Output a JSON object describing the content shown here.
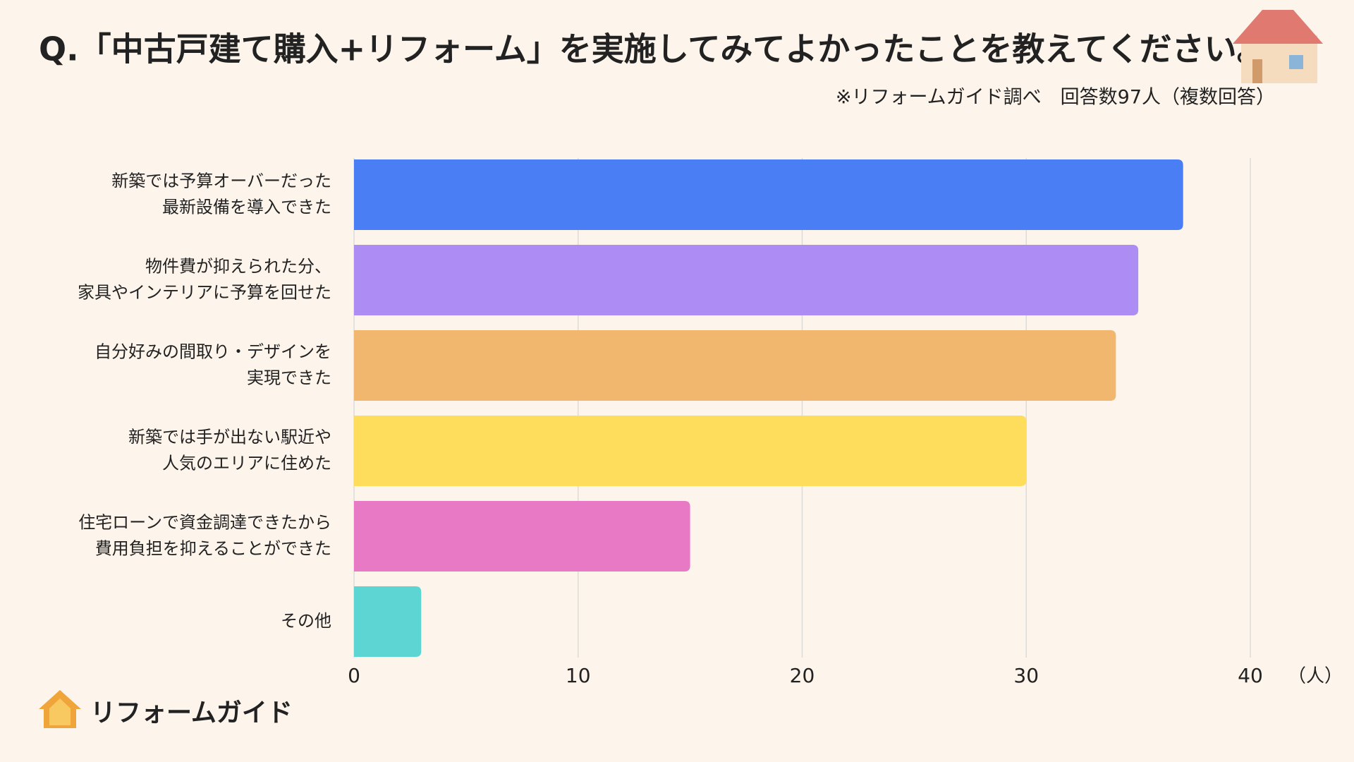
{
  "chart_data": {
    "type": "bar",
    "orientation": "horizontal",
    "title": "Q.「中古戸建て購入+リフォーム」を実施してみてよかったことを教えてください。",
    "subtitle": "※リフォームガイド調べ　回答数97人（複数回答）",
    "categories": [
      [
        "新築では予算オーバーだった",
        "最新設備を導入できた"
      ],
      [
        "物件費が抑えられた分、",
        "家具やインテリアに予算を回せた"
      ],
      [
        "自分好みの間取り・デザインを",
        "実現できた"
      ],
      [
        "新築では手が出ない駅近や",
        "人気のエリアに住めた"
      ],
      [
        "住宅ローンで資金調達できたから",
        "費用負担を抑えることができた"
      ],
      [
        "その他"
      ]
    ],
    "values": [
      37,
      35,
      34,
      30,
      15,
      3
    ],
    "colors": [
      "#4a7ef5",
      "#ad8cf3",
      "#f2b76e",
      "#ffdd5c",
      "#e879c4",
      "#5dd6d3"
    ],
    "xlim": [
      0,
      40
    ],
    "xticks": [
      0,
      10,
      20,
      30,
      40
    ],
    "x_unit": "（人）",
    "grid": true,
    "logo": "リフォームガイド"
  }
}
